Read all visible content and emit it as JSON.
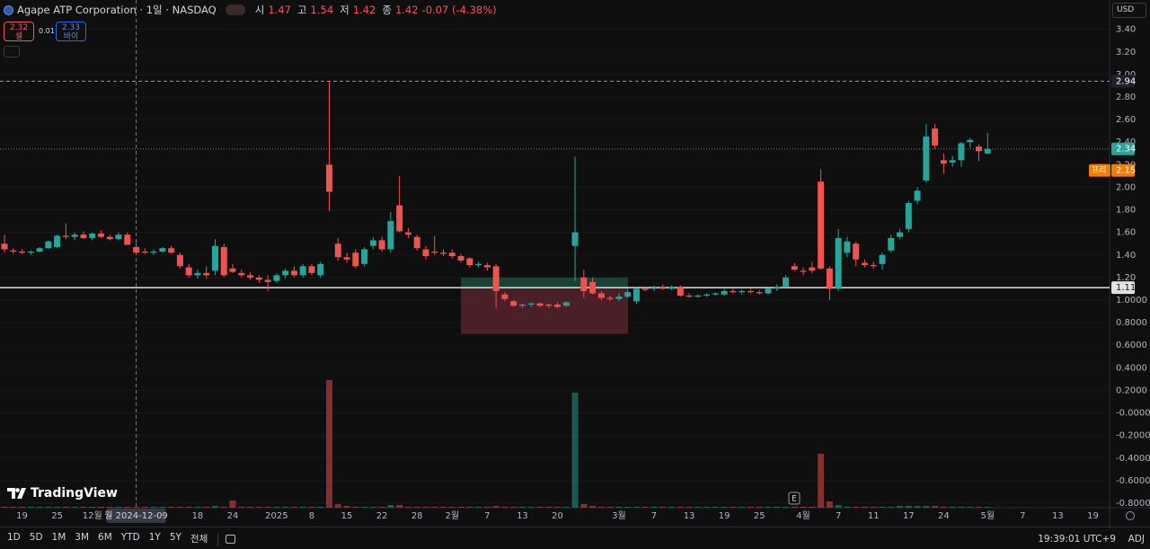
{
  "chart_data": {
    "type": "candlestick",
    "symbol": "Agape ATP Corporation · 1일 · NASDAQ",
    "ohlc_labels": [
      "시",
      "고",
      "저",
      "종"
    ],
    "change": "-0.07 (-4.38%)",
    "quote": {
      "sell": 2.32,
      "sell_label": "셀",
      "spread": 0.01,
      "buy": 2.33,
      "buy_label": "바이"
    },
    "currency": "USD",
    "brand": "TradingView",
    "event_marker": "E",
    "crosshair_label": "월  2024-12-09",
    "timeframes": [
      "1D",
      "5D",
      "1M",
      "3M",
      "6M",
      "YTD",
      "1Y",
      "5Y",
      "전체"
    ],
    "clock": "19:39:01 UTC+9",
    "adj": "ADJ",
    "up_color": "#26a69a",
    "down_color": "#ef5350",
    "grid": true,
    "ylim": [
      -0.84,
      3.66
    ],
    "yticks": [
      {
        "value": 3.4,
        "label": "3.40"
      },
      {
        "value": 3.2,
        "label": "3.20"
      },
      {
        "value": 3.0,
        "label": "3.00"
      },
      {
        "value": 2.8,
        "label": "2.80"
      },
      {
        "value": 2.6,
        "label": "2.60"
      },
      {
        "value": 2.4,
        "label": "2.40"
      },
      {
        "value": 2.2,
        "label": "2.20"
      },
      {
        "value": 2.0,
        "label": "2.00"
      },
      {
        "value": 1.8,
        "label": "1.80"
      },
      {
        "value": 1.6,
        "label": "1.60"
      },
      {
        "value": 1.4,
        "label": "1.40"
      },
      {
        "value": 1.2,
        "label": "1.20"
      },
      {
        "value": 1.0,
        "label": "1.0000"
      },
      {
        "value": 0.8,
        "label": "0.8000"
      },
      {
        "value": 0.6,
        "label": "0.6000"
      },
      {
        "value": 0.4,
        "label": "0.4000"
      },
      {
        "value": 0.2,
        "label": "0.2000"
      },
      {
        "value": 0,
        "label": "-0.0000"
      },
      {
        "value": -0.2,
        "label": "-0.2000"
      },
      {
        "value": -0.4,
        "label": "-0.4000"
      },
      {
        "value": -0.6,
        "label": "-0.6000"
      },
      {
        "value": -0.8,
        "label": "-0.8000"
      }
    ],
    "premarket": {
      "label": "프리",
      "value": 2.15
    },
    "hline": 1.11,
    "zones": [
      {
        "from": 1.2,
        "to": 1.1,
        "color": "#1b4a3d"
      },
      {
        "from": 1.1,
        "to": 0.7,
        "color": "#55222a"
      }
    ],
    "categories": [
      null,
      null,
      "19",
      null,
      null,
      null,
      "25",
      null,
      null,
      null,
      "12월",
      null,
      null,
      null,
      null,
      null,
      null,
      null,
      null,
      null,
      null,
      null,
      "18",
      null,
      null,
      null,
      "24",
      null,
      null,
      null,
      null,
      "2025",
      null,
      null,
      null,
      "8",
      null,
      null,
      null,
      "15",
      null,
      null,
      null,
      "22",
      null,
      null,
      null,
      "28",
      null,
      null,
      null,
      "2월",
      null,
      null,
      null,
      "7",
      null,
      null,
      null,
      "13",
      null,
      null,
      null,
      "20",
      null,
      null,
      null,
      null,
      null,
      null,
      "3월",
      null,
      null,
      null,
      "7",
      null,
      null,
      null,
      "13",
      null,
      null,
      null,
      "19",
      null,
      null,
      null,
      "25",
      null,
      null,
      null,
      null,
      "4월",
      null,
      null,
      null,
      "7",
      null,
      null,
      null,
      "11",
      null,
      null,
      null,
      "17",
      null,
      null,
      null,
      "24",
      null,
      null,
      null,
      null,
      "5월",
      null,
      null,
      null,
      "7",
      null,
      null,
      null,
      "13",
      null,
      null,
      null,
      "19"
    ],
    "open": [
      1.5,
      1.44,
      1.43,
      1.42,
      1.43,
      1.46,
      1.47,
      1.57,
      1.56,
      1.58,
      1.55,
      1.59,
      1.56,
      1.54,
      1.58,
      1.47,
      1.43,
      1.42,
      1.43,
      1.46,
      1.4,
      1.29,
      1.22,
      1.24,
      1.26,
      1.47,
      1.28,
      1.24,
      1.22,
      1.2,
      1.18,
      1.17,
      1.22,
      1.26,
      1.22,
      1.3,
      1.22,
      2.2,
      1.5,
      1.38,
      1.42,
      1.32,
      1.48,
      1.53,
      1.45,
      1.84,
      1.6,
      1.56,
      1.45,
      1.43,
      1.42,
      1.42,
      1.39,
      1.37,
      1.31,
      1.31,
      1.3,
      1.05,
      0.99,
      0.95,
      0.96,
      0.97,
      0.96,
      0.96,
      0.95,
      1.48,
      1.2,
      1.16,
      1.06,
      1.02,
      1.01,
      1.03,
      0.99,
      1.1,
      1.1,
      1.12,
      1.1,
      1.12,
      1.04,
      1.03,
      1.04,
      1.05,
      1.05,
      1.08,
      1.07,
      1.08,
      1.07,
      1.06,
      1.1,
      1.12,
      1.3,
      1.26,
      1.29,
      2.05,
      1.28,
      1.1,
      1.42,
      1.5,
      1.33,
      1.31,
      1.32,
      1.44,
      1.56,
      1.63,
      1.88,
      2.06,
      2.52,
      2.24,
      2.22,
      2.24,
      2.4,
      2.36,
      2.3,
      null,
      null,
      null,
      null,
      null,
      null,
      null,
      null,
      null,
      null,
      null,
      null
    ],
    "high": [
      1.58,
      1.46,
      1.45,
      1.44,
      1.47,
      1.53,
      1.58,
      1.68,
      1.6,
      1.61,
      1.6,
      1.62,
      1.58,
      1.6,
      1.6,
      1.54,
      1.46,
      1.45,
      1.47,
      1.48,
      1.42,
      1.32,
      1.27,
      1.3,
      1.54,
      1.5,
      1.32,
      1.27,
      1.25,
      1.22,
      1.22,
      1.24,
      1.28,
      1.3,
      1.32,
      1.32,
      1.34,
      2.94,
      1.55,
      1.42,
      1.45,
      1.47,
      1.56,
      1.56,
      1.78,
      2.1,
      1.64,
      1.58,
      1.48,
      1.57,
      1.45,
      1.45,
      1.41,
      1.38,
      1.34,
      1.33,
      1.32,
      1.07,
      1.0,
      0.97,
      0.98,
      0.98,
      0.97,
      0.98,
      0.99,
      2.27,
      1.27,
      1.2,
      1.08,
      1.04,
      1.06,
      1.1,
      1.11,
      1.12,
      1.13,
      1.14,
      1.13,
      1.13,
      1.06,
      1.05,
      1.06,
      1.07,
      1.1,
      1.1,
      1.09,
      1.1,
      1.09,
      1.11,
      1.14,
      1.22,
      1.33,
      1.29,
      1.34,
      2.16,
      1.3,
      1.63,
      1.56,
      1.52,
      1.36,
      1.34,
      1.42,
      1.58,
      1.63,
      1.88,
      2.0,
      2.56,
      2.56,
      2.3,
      2.28,
      2.4,
      2.44,
      2.38,
      2.48,
      null,
      null,
      null,
      null,
      null,
      null,
      null,
      null,
      null,
      null,
      null,
      null
    ],
    "low": [
      1.42,
      1.41,
      1.41,
      1.4,
      1.42,
      1.45,
      1.46,
      1.54,
      1.53,
      1.54,
      1.53,
      1.55,
      1.53,
      1.53,
      1.49,
      1.42,
      1.41,
      1.4,
      1.42,
      1.41,
      1.28,
      1.2,
      1.19,
      1.19,
      1.22,
      1.2,
      1.24,
      1.2,
      1.18,
      1.15,
      1.08,
      1.15,
      1.19,
      1.2,
      1.2,
      1.22,
      1.2,
      1.79,
      1.35,
      1.33,
      1.28,
      1.3,
      1.45,
      1.43,
      1.42,
      1.6,
      1.55,
      1.44,
      1.36,
      1.4,
      1.39,
      1.37,
      1.33,
      1.29,
      1.29,
      1.26,
      0.93,
      0.99,
      0.94,
      0.93,
      0.94,
      0.94,
      0.93,
      0.93,
      0.94,
      1.17,
      1.02,
      1.05,
      1.0,
      0.99,
      0.99,
      1.02,
      0.97,
      1.08,
      1.08,
      1.09,
      1.09,
      1.03,
      1.02,
      1.02,
      1.03,
      1.04,
      1.04,
      1.06,
      1.05,
      1.06,
      1.05,
      1.05,
      1.08,
      1.11,
      1.26,
      1.22,
      1.24,
      1.27,
      1.0,
      1.08,
      1.38,
      1.3,
      1.29,
      1.28,
      1.27,
      1.42,
      1.54,
      1.6,
      1.85,
      2.04,
      2.34,
      2.12,
      2.18,
      2.18,
      2.35,
      2.23,
      2.29,
      null,
      null,
      null,
      null,
      null,
      null,
      null,
      null,
      null,
      null,
      null,
      null
    ],
    "close": [
      1.45,
      1.43,
      1.42,
      1.43,
      1.46,
      1.52,
      1.57,
      1.56,
      1.58,
      1.55,
      1.59,
      1.56,
      1.54,
      1.58,
      1.49,
      1.42,
      1.42,
      1.43,
      1.46,
      1.42,
      1.3,
      1.22,
      1.24,
      1.22,
      1.48,
      1.22,
      1.25,
      1.22,
      1.2,
      1.18,
      1.16,
      1.22,
      1.26,
      1.22,
      1.3,
      1.24,
      1.32,
      1.96,
      1.38,
      1.36,
      1.3,
      1.45,
      1.53,
      1.45,
      1.7,
      1.61,
      1.58,
      1.46,
      1.39,
      1.42,
      1.41,
      1.39,
      1.35,
      1.31,
      1.32,
      1.29,
      1.08,
      1.01,
      0.95,
      0.96,
      0.97,
      0.95,
      0.95,
      0.94,
      0.98,
      1.6,
      1.08,
      1.06,
      1.02,
      1.01,
      1.03,
      1.07,
      1.1,
      1.09,
      1.11,
      1.1,
      1.12,
      1.04,
      1.03,
      1.04,
      1.05,
      1.06,
      1.08,
      1.07,
      1.08,
      1.07,
      1.06,
      1.1,
      1.12,
      1.2,
      1.27,
      1.25,
      1.26,
      1.28,
      1.1,
      1.55,
      1.52,
      1.36,
      1.31,
      1.3,
      1.4,
      1.55,
      1.6,
      1.86,
      1.97,
      2.45,
      2.37,
      2.21,
      2.24,
      2.39,
      2.42,
      2.32,
      2.34,
      null,
      null,
      null,
      null,
      null,
      null,
      null,
      null,
      null,
      null,
      null,
      null
    ],
    "volume": [
      1,
      1,
      1,
      1,
      1,
      1,
      1,
      1,
      1,
      1,
      1,
      1,
      1,
      1,
      1,
      1,
      1,
      1,
      1,
      1,
      1,
      1,
      1,
      1,
      2,
      1,
      8,
      1,
      1,
      1,
      1,
      1,
      1,
      1,
      1,
      1,
      1,
      142,
      4,
      2,
      1,
      1,
      1,
      1,
      3,
      3,
      1,
      1,
      1,
      1,
      1,
      1,
      1,
      1,
      1,
      1,
      2,
      1,
      1,
      1,
      1,
      1,
      1,
      1,
      1,
      128,
      4,
      2,
      1,
      1,
      1,
      1,
      1,
      1,
      1,
      1,
      1,
      1,
      1,
      1,
      1,
      1,
      1,
      1,
      1,
      1,
      1,
      1,
      1,
      1,
      1,
      1,
      1,
      60,
      7,
      3,
      1,
      1,
      1,
      1,
      1,
      1,
      2,
      2,
      2,
      2,
      2,
      1,
      1,
      1,
      1,
      1,
      1,
      null,
      null,
      null,
      null,
      null,
      null,
      null,
      null,
      null,
      null,
      null,
      null
    ]
  }
}
